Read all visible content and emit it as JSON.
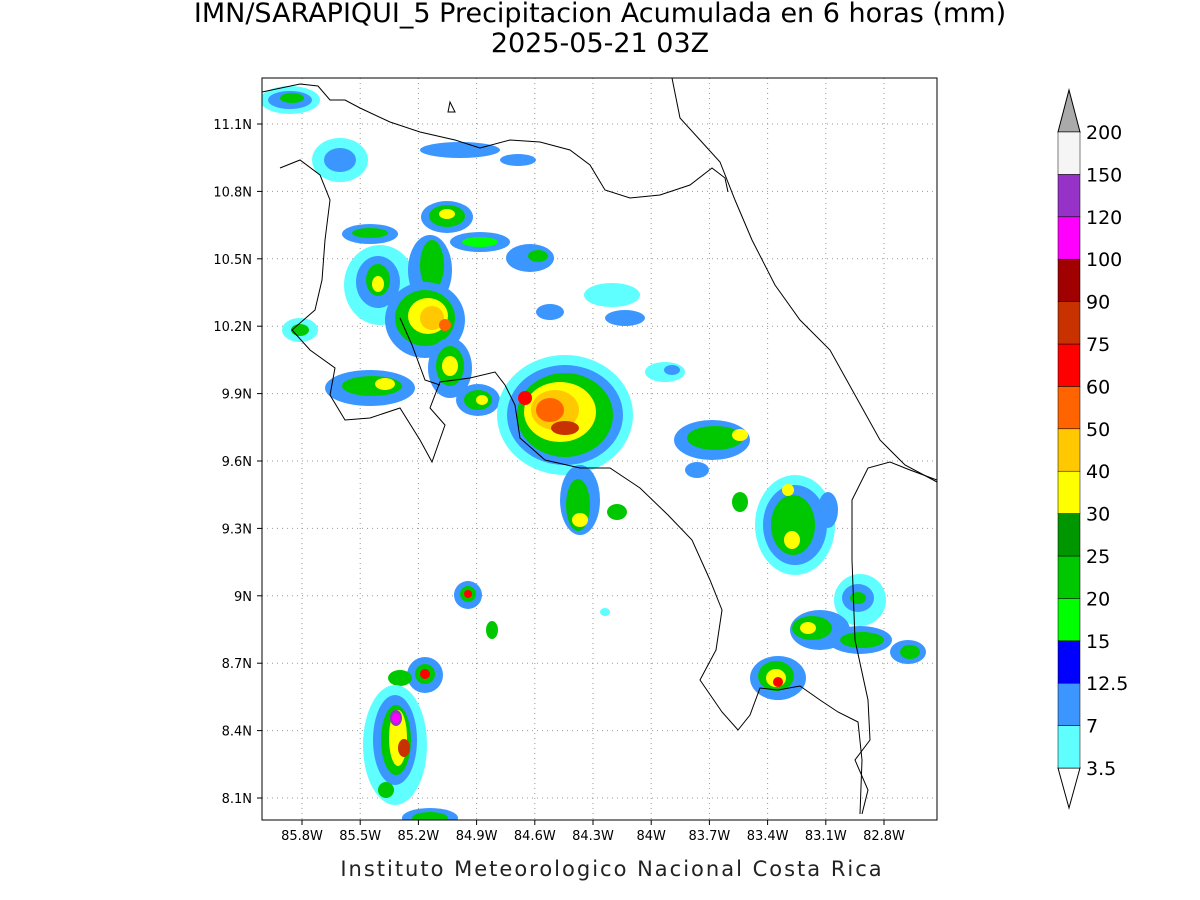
{
  "title": "IMN/SARAPIQUI_5 Precipitacion Acumulada en 6 horas (mm)",
  "subtitle": "2025-05-21 03Z",
  "map": {
    "lat_labels": [
      "11.1N",
      "10.8N",
      "10.5N",
      "10.2N",
      "9.9N",
      "9.6N",
      "9.3N",
      "9N",
      "8.7N",
      "8.4N",
      "8.1N"
    ],
    "lon_labels": [
      "85.8W",
      "85.5W",
      "85.2W",
      "84.9W",
      "84.6W",
      "84.3W",
      "84W",
      "83.7W",
      "83.4W",
      "83.1W",
      "82.8W"
    ]
  },
  "colorbar": {
    "levels": [
      3.5,
      7,
      12.5,
      15,
      20,
      25,
      30,
      40,
      50,
      60,
      75,
      90,
      100,
      120,
      150,
      200
    ],
    "colors": [
      "#60ffff",
      "#3c96ff",
      "#0000ff",
      "#00ff00",
      "#00c800",
      "#009600",
      "#ffff00",
      "#ffc800",
      "#ff6400",
      "#ff0000",
      "#c83200",
      "#a00000",
      "#ff00ff",
      "#9632c8",
      "#f5f5f5"
    ],
    "under_color": "#ffffff",
    "over_color": "#aaaaaa"
  },
  "footer": "Instituto Meteorologico Nacional Costa Rica"
}
